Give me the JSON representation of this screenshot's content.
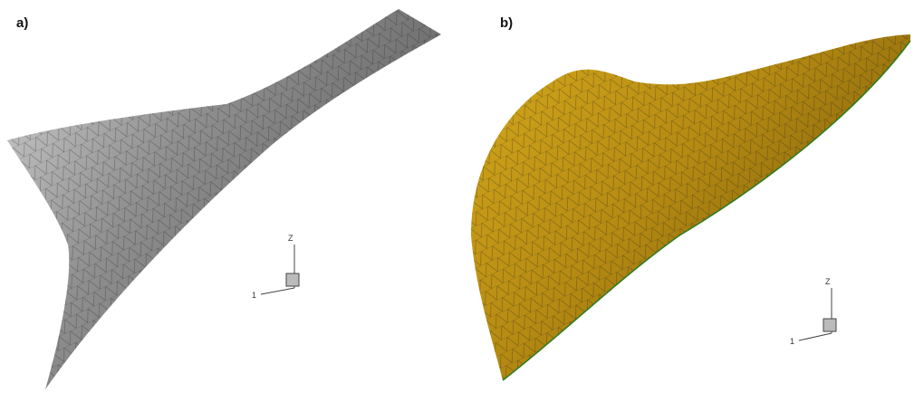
{
  "panels": [
    {
      "label": "a)",
      "axes": {
        "vertical": "Z",
        "horizontal": "1"
      }
    },
    {
      "label": "b)",
      "axes": {
        "vertical": "Z",
        "horizontal": "1"
      }
    }
  ]
}
